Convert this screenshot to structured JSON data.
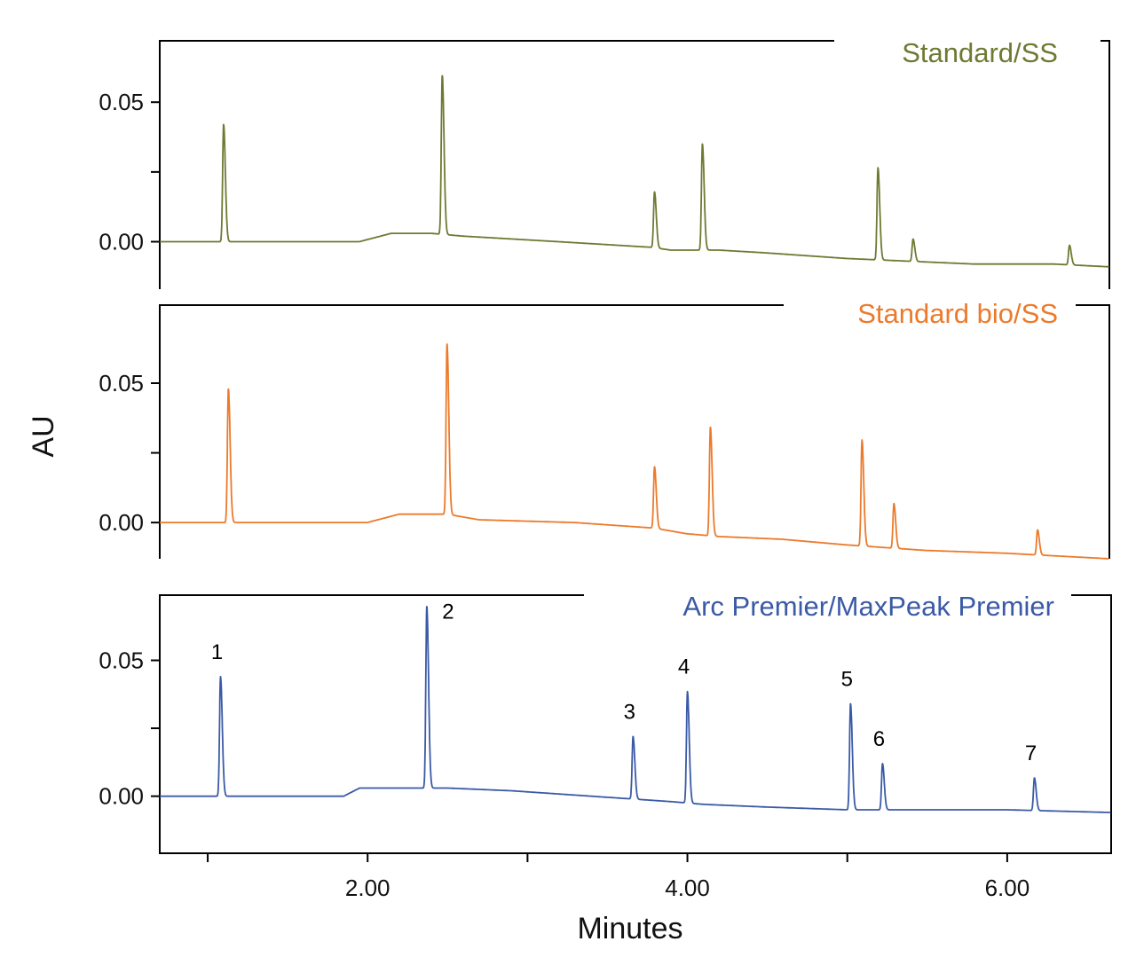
{
  "chart_data": {
    "type": "line",
    "xlabel": "Minutes",
    "ylabel": "AU",
    "xlim": [
      0.7,
      6.65
    ],
    "x_ticks": [
      {
        "value": 1.0,
        "label": ""
      },
      {
        "value": 2.0,
        "label": "2.00"
      },
      {
        "value": 3.0,
        "label": ""
      },
      {
        "value": 4.0,
        "label": "4.00"
      },
      {
        "value": 5.0,
        "label": ""
      },
      {
        "value": 6.0,
        "label": "6.00"
      }
    ],
    "panels": [
      {
        "title": "Standard/SS",
        "color": "#6e7a32",
        "ylim": [
          -0.017,
          0.072
        ],
        "y_ticks": [
          {
            "value": 0.0,
            "label": "0.00"
          },
          {
            "value": 0.025,
            "label": ""
          },
          {
            "value": 0.05,
            "label": "0.05"
          }
        ],
        "baseline": [
          [
            0.7,
            0.0
          ],
          [
            1.95,
            0.0
          ],
          [
            2.15,
            0.003
          ],
          [
            2.4,
            0.003
          ],
          [
            2.6,
            0.002
          ],
          [
            3.2,
            0.0
          ],
          [
            3.78,
            -0.002
          ],
          [
            3.9,
            -0.003
          ],
          [
            4.2,
            -0.003
          ],
          [
            4.5,
            -0.004
          ],
          [
            5.0,
            -0.006
          ],
          [
            5.4,
            -0.007
          ],
          [
            5.8,
            -0.008
          ],
          [
            6.3,
            -0.008
          ],
          [
            6.65,
            -0.009
          ]
        ],
        "peaks": [
          {
            "x": 1.1,
            "height": 0.042,
            "label": ""
          },
          {
            "x": 2.47,
            "height": 0.057,
            "label": ""
          },
          {
            "x": 3.8,
            "height": 0.02,
            "label": ""
          },
          {
            "x": 4.1,
            "height": 0.038,
            "label": ""
          },
          {
            "x": 5.2,
            "height": 0.033,
            "label": ""
          },
          {
            "x": 5.42,
            "height": 0.008,
            "label": ""
          },
          {
            "x": 6.4,
            "height": 0.007,
            "label": ""
          }
        ]
      },
      {
        "title": "Standard bio/SS",
        "color": "#ec7a2b",
        "ylim": [
          -0.013,
          0.078
        ],
        "y_ticks": [
          {
            "value": 0.0,
            "label": "0.00"
          },
          {
            "value": 0.025,
            "label": ""
          },
          {
            "value": 0.05,
            "label": "0.05"
          }
        ],
        "baseline": [
          [
            0.7,
            0.0
          ],
          [
            2.0,
            0.0
          ],
          [
            2.2,
            0.003
          ],
          [
            2.5,
            0.003
          ],
          [
            2.7,
            0.001
          ],
          [
            3.3,
            0.0
          ],
          [
            3.8,
            -0.002
          ],
          [
            4.0,
            -0.004
          ],
          [
            4.2,
            -0.005
          ],
          [
            4.6,
            -0.006
          ],
          [
            5.0,
            -0.008
          ],
          [
            5.5,
            -0.01
          ],
          [
            6.0,
            -0.011
          ],
          [
            6.65,
            -0.013
          ]
        ],
        "peaks": [
          {
            "x": 1.13,
            "height": 0.048,
            "label": ""
          },
          {
            "x": 2.5,
            "height": 0.061,
            "label": ""
          },
          {
            "x": 3.8,
            "height": 0.022,
            "label": ""
          },
          {
            "x": 4.15,
            "height": 0.039,
            "label": ""
          },
          {
            "x": 5.1,
            "height": 0.038,
            "label": ""
          },
          {
            "x": 5.3,
            "height": 0.016,
            "label": ""
          },
          {
            "x": 6.2,
            "height": 0.009,
            "label": ""
          }
        ]
      },
      {
        "title": "Arc Premier/MaxPeak Premier",
        "color": "#3b5aa6",
        "ylim": [
          -0.021,
          0.074
        ],
        "y_ticks": [
          {
            "value": 0.0,
            "label": "0.00"
          },
          {
            "value": 0.025,
            "label": ""
          },
          {
            "value": 0.05,
            "label": "0.05"
          }
        ],
        "baseline": [
          [
            0.7,
            0.0
          ],
          [
            1.85,
            0.0
          ],
          [
            1.95,
            0.003
          ],
          [
            2.3,
            0.003
          ],
          [
            2.5,
            0.003
          ],
          [
            2.9,
            0.002
          ],
          [
            3.4,
            0.0
          ],
          [
            3.9,
            -0.002
          ],
          [
            4.1,
            -0.003
          ],
          [
            4.5,
            -0.004
          ],
          [
            5.0,
            -0.005
          ],
          [
            5.5,
            -0.005
          ],
          [
            6.0,
            -0.005
          ],
          [
            6.65,
            -0.006
          ]
        ],
        "peaks": [
          {
            "x": 1.08,
            "height": 0.044,
            "label": "1"
          },
          {
            "x": 2.37,
            "height": 0.067,
            "label": "2"
          },
          {
            "x": 3.66,
            "height": 0.023,
            "label": "3"
          },
          {
            "x": 4.0,
            "height": 0.041,
            "label": "4"
          },
          {
            "x": 5.02,
            "height": 0.039,
            "label": "5"
          },
          {
            "x": 5.22,
            "height": 0.017,
            "label": "6"
          },
          {
            "x": 6.17,
            "height": 0.012,
            "label": "7"
          }
        ]
      }
    ]
  }
}
